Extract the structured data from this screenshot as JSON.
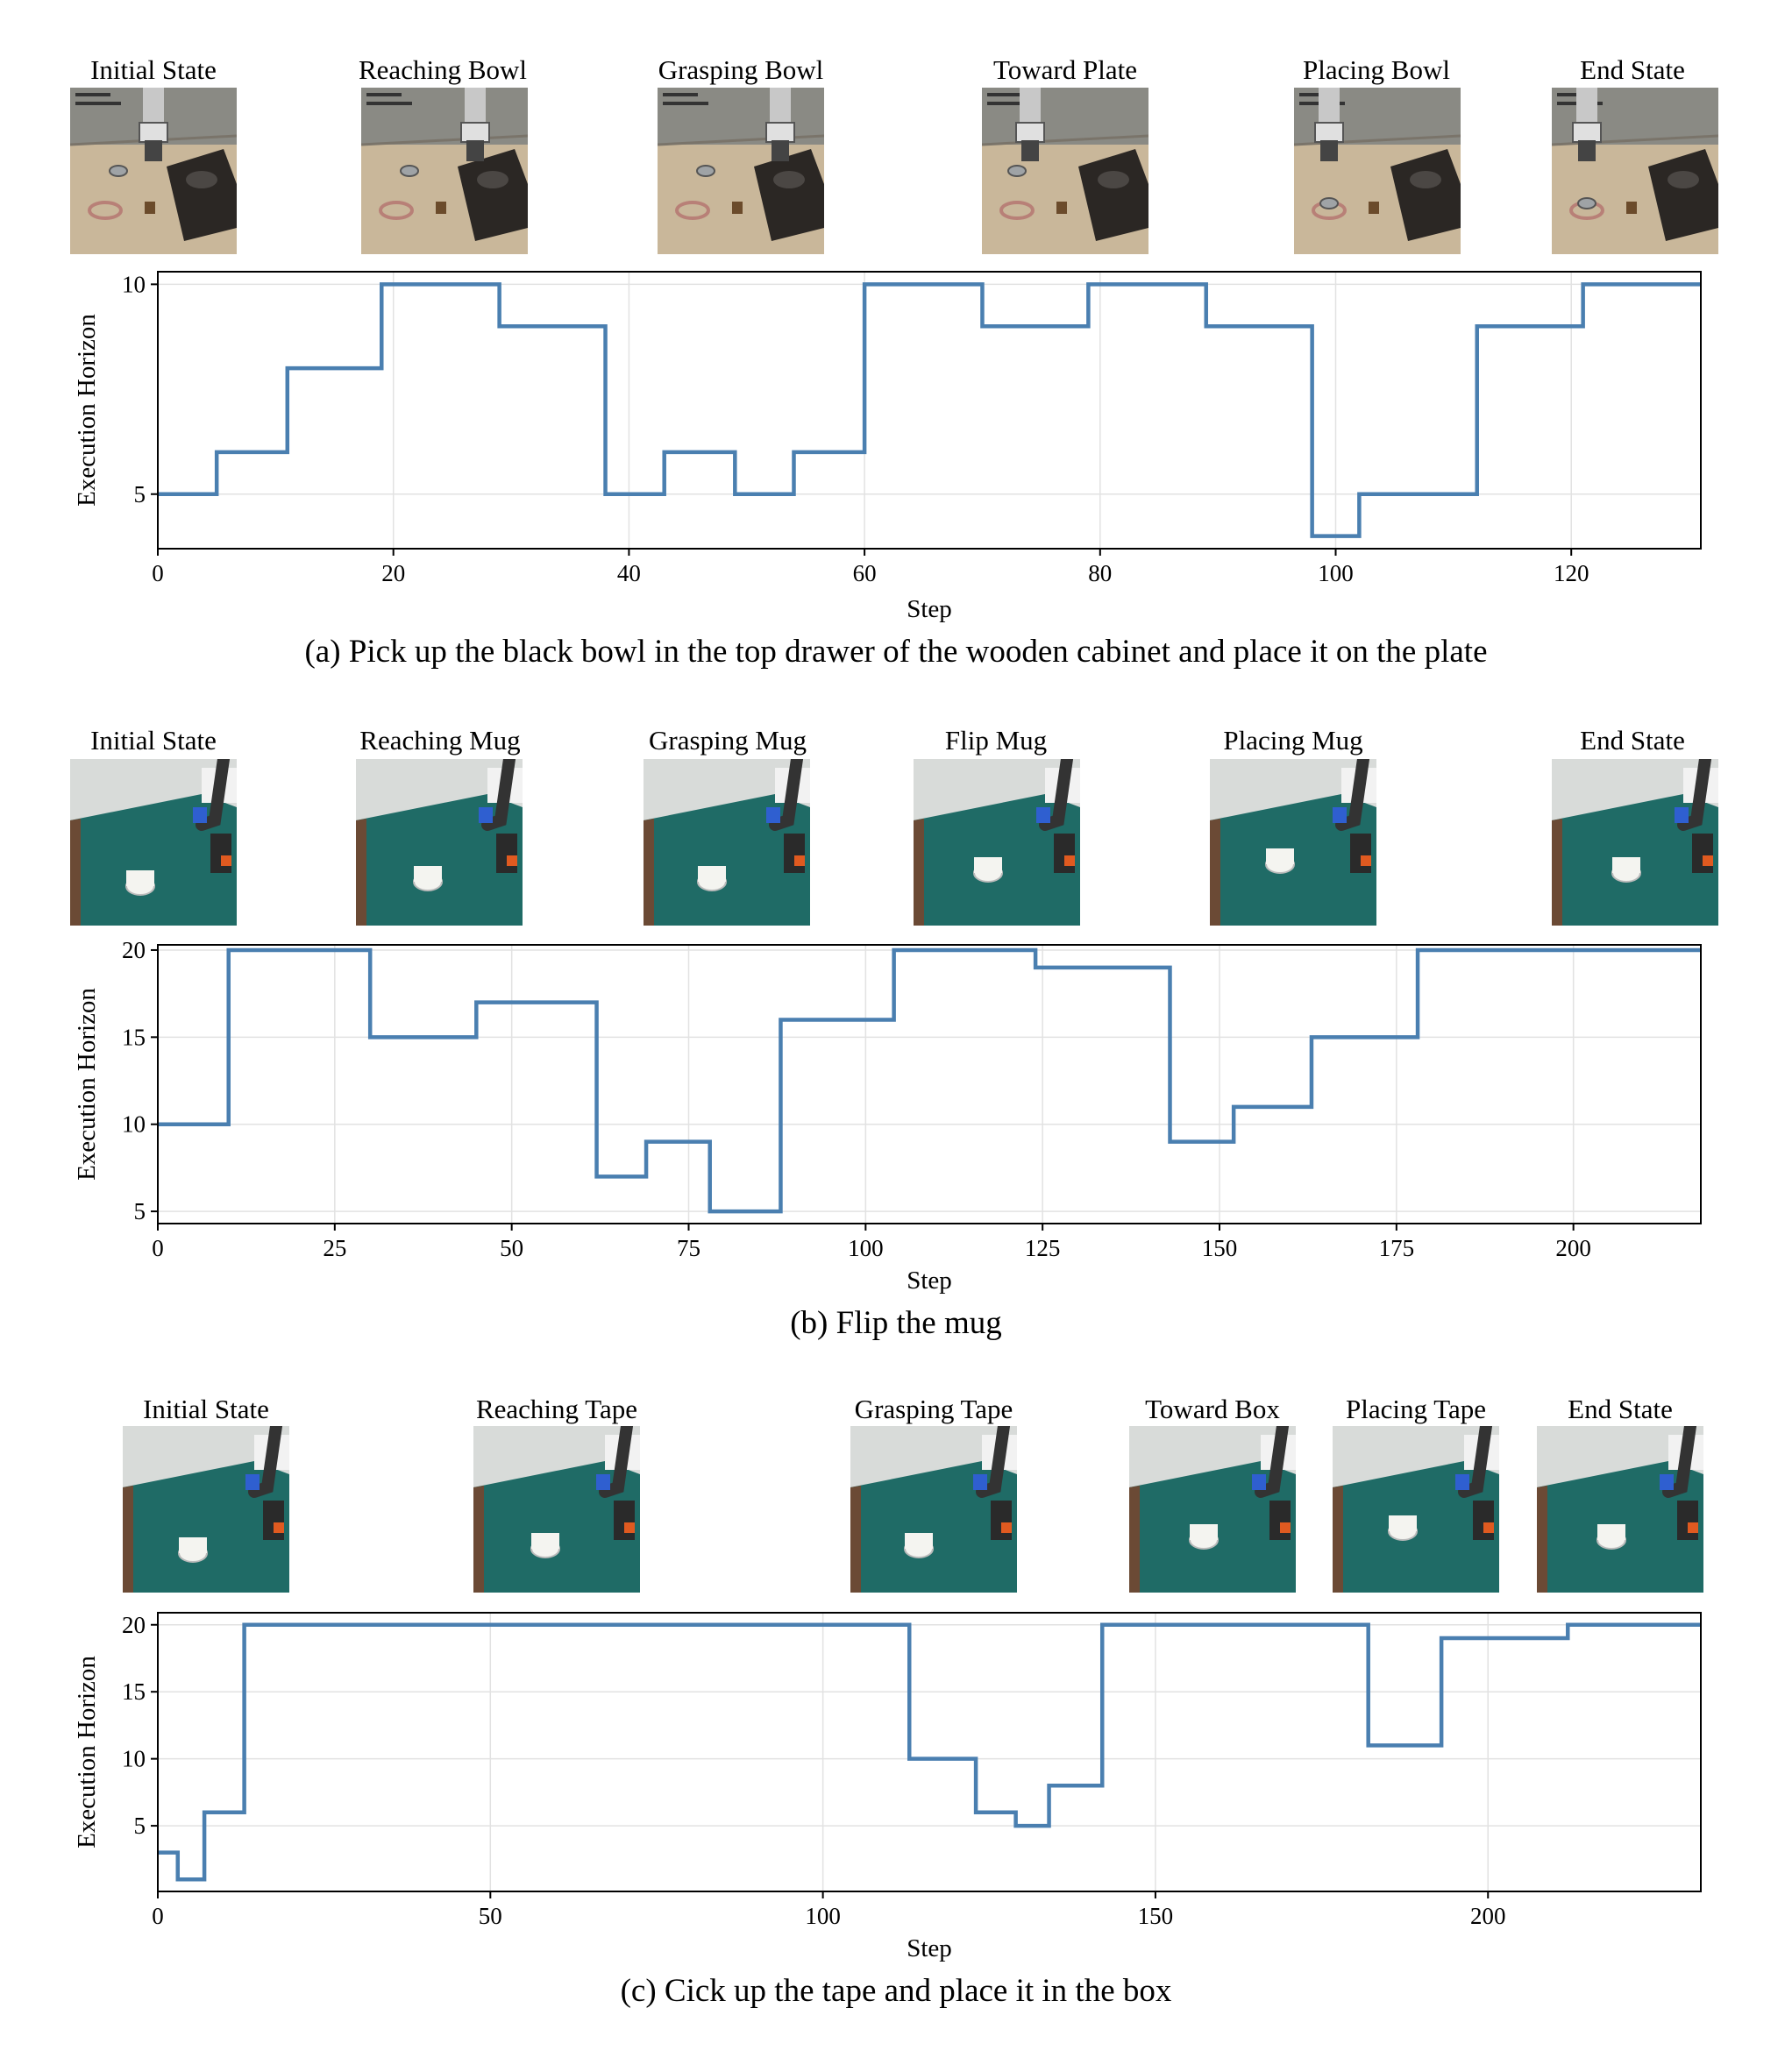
{
  "panels": [
    {
      "frames": [
        "Initial State",
        "Reaching Bowl",
        "Grasping Bowl",
        "Toward Plate",
        "Placing Bowl",
        "End State"
      ],
      "caption": "(a) Pick up the black bowl in the top drawer of the wooden cabinet and place it on the plate",
      "scene": "sim"
    },
    {
      "frames": [
        "Initial State",
        "Reaching Mug",
        "Grasping Mug",
        "Flip Mug",
        "Placing Mug",
        "End State"
      ],
      "caption": "(b) Flip the mug",
      "scene": "real"
    },
    {
      "frames": [
        "Initial State",
        "Reaching Tape",
        "Grasping Tape",
        "Toward Box",
        "Placing Tape",
        "End State"
      ],
      "caption": "(c) Cick up the tape and place it in the box",
      "scene": "real"
    }
  ],
  "chart_data": [
    {
      "type": "line",
      "step": true,
      "xlabel": "Step",
      "ylabel": "Execution Horizon",
      "xlim": [
        0,
        131
      ],
      "ylim": [
        3.7,
        10.3
      ],
      "xticks": [
        0,
        20,
        40,
        60,
        80,
        100,
        120
      ],
      "yticks": [
        5,
        10
      ],
      "grid": true,
      "color": "#4a7fb0",
      "points": [
        [
          0,
          5
        ],
        [
          5,
          6
        ],
        [
          11,
          8
        ],
        [
          19,
          10
        ],
        [
          29,
          9
        ],
        [
          38,
          5
        ],
        [
          43,
          6
        ],
        [
          49,
          5
        ],
        [
          54,
          6
        ],
        [
          60,
          10
        ],
        [
          70,
          9
        ],
        [
          79,
          10
        ],
        [
          89,
          9
        ],
        [
          98,
          4
        ],
        [
          102,
          5
        ],
        [
          112,
          9
        ],
        [
          121,
          10
        ],
        [
          131,
          10
        ]
      ]
    },
    {
      "type": "line",
      "step": true,
      "xlabel": "Step",
      "ylabel": "Execution Horizon",
      "xlim": [
        0,
        218
      ],
      "ylim": [
        4.3,
        20.3
      ],
      "xticks": [
        0,
        25,
        50,
        75,
        100,
        125,
        150,
        175,
        200
      ],
      "yticks": [
        5,
        10,
        15,
        20
      ],
      "grid": true,
      "color": "#4a7fb0",
      "points": [
        [
          0,
          10
        ],
        [
          10,
          20
        ],
        [
          30,
          15
        ],
        [
          45,
          17
        ],
        [
          62,
          7
        ],
        [
          69,
          9
        ],
        [
          78,
          5
        ],
        [
          88,
          16
        ],
        [
          104,
          20
        ],
        [
          124,
          19
        ],
        [
          143,
          9
        ],
        [
          152,
          11
        ],
        [
          163,
          15
        ],
        [
          178,
          20
        ],
        [
          218,
          20
        ]
      ]
    },
    {
      "type": "line",
      "step": true,
      "xlabel": "Step",
      "ylabel": "Execution Horizon",
      "xlim": [
        0,
        232
      ],
      "ylim": [
        0.1,
        20.9
      ],
      "xticks": [
        0,
        50,
        100,
        150,
        200
      ],
      "yticks": [
        5,
        10,
        15,
        20
      ],
      "grid": true,
      "color": "#4a7fb0",
      "points": [
        [
          0,
          3
        ],
        [
          3,
          1
        ],
        [
          7,
          6
        ],
        [
          13,
          20
        ],
        [
          113,
          10
        ],
        [
          123,
          6
        ],
        [
          129,
          5
        ],
        [
          134,
          8
        ],
        [
          142,
          20
        ],
        [
          182,
          11
        ],
        [
          193,
          19
        ],
        [
          212,
          20
        ],
        [
          232,
          20
        ]
      ]
    }
  ]
}
